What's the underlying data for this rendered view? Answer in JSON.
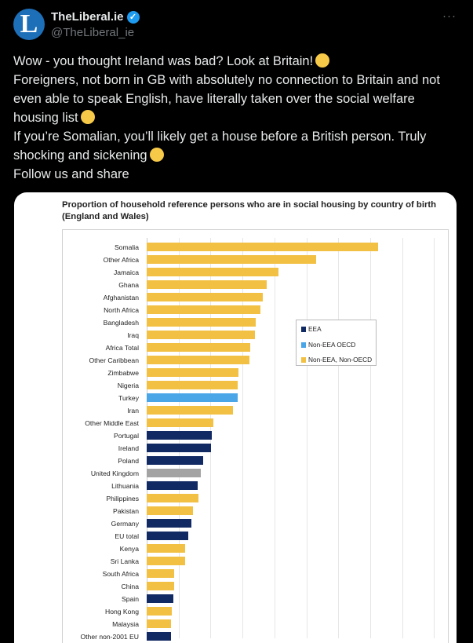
{
  "tweet": {
    "avatar_letter": "L",
    "display_name": "TheLiberal.ie",
    "handle": "@TheLiberal_ie",
    "more_label": "···",
    "lines": [
      "Wow - you thought Ireland was bad? Look at Britain!",
      "Foreigners, not born in GB with absolutely no connection to Britain and not even able to speak English, have literally taken over the social welfare housing list",
      "If you’re Somalian, you’ll likely get a house before a British person. Truly shocking and sickening",
      "Follow us and share"
    ]
  },
  "colors": {
    "EEA": "#122a63",
    "Non-EEA OECD": "#4ba6e8",
    "Non-EEA, Non-OECD": "#f2c043",
    "UK": "#a3a3a3"
  },
  "chart_data": {
    "type": "bar",
    "orientation": "horizontal",
    "title": "Proportion of household reference persons who are in social housing by country of birth (England and Wales)",
    "xlabel": "",
    "ylabel": "",
    "unit": "percent (estimated, gridlines every 10)",
    "xlim": [
      0,
      80
    ],
    "grid": true,
    "legend_position": "right-middle",
    "legend": [
      "EEA",
      "Non-EEA OECD",
      "Non-EEA, Non-OECD"
    ],
    "categories": [
      "Somalia",
      "Other Africa",
      "Jamaica",
      "Ghana",
      "Afghanistan",
      "North Africa",
      "Bangladesh",
      "Iraq",
      "Africa Total",
      "Other Caribbean",
      "Zimbabwe",
      "Nigeria",
      "Turkey",
      "Iran",
      "Other Middle East",
      "Portugal",
      "Ireland",
      "Poland",
      "United Kingdom",
      "Lithuania",
      "Philippines",
      "Pakistan",
      "Germany",
      "EU total",
      "Kenya",
      "Sri Lanka",
      "South Africa",
      "China",
      "Spain",
      "Hong Kong",
      "Malaysia",
      "Other non-2001 EU"
    ],
    "values": [
      72.5,
      53,
      41.4,
      37.5,
      36.3,
      35.7,
      34.1,
      33.9,
      32.5,
      32.1,
      28.8,
      28.5,
      28.4,
      27,
      21,
      20.5,
      20.1,
      17.8,
      16.9,
      16,
      16.1,
      14.5,
      13.9,
      13,
      12.1,
      12,
      8.7,
      8.5,
      8.3,
      7.9,
      7.5,
      7.5
    ],
    "groups": [
      "Non-EEA, Non-OECD",
      "Non-EEA, Non-OECD",
      "Non-EEA, Non-OECD",
      "Non-EEA, Non-OECD",
      "Non-EEA, Non-OECD",
      "Non-EEA, Non-OECD",
      "Non-EEA, Non-OECD",
      "Non-EEA, Non-OECD",
      "Non-EEA, Non-OECD",
      "Non-EEA, Non-OECD",
      "Non-EEA, Non-OECD",
      "Non-EEA, Non-OECD",
      "Non-EEA OECD",
      "Non-EEA, Non-OECD",
      "Non-EEA, Non-OECD",
      "EEA",
      "EEA",
      "EEA",
      "UK",
      "EEA",
      "Non-EEA, Non-OECD",
      "Non-EEA, Non-OECD",
      "EEA",
      "EEA",
      "Non-EEA, Non-OECD",
      "Non-EEA, Non-OECD",
      "Non-EEA, Non-OECD",
      "Non-EEA, Non-OECD",
      "EEA",
      "Non-EEA, Non-OECD",
      "Non-EEA, Non-OECD",
      "EEA"
    ]
  }
}
